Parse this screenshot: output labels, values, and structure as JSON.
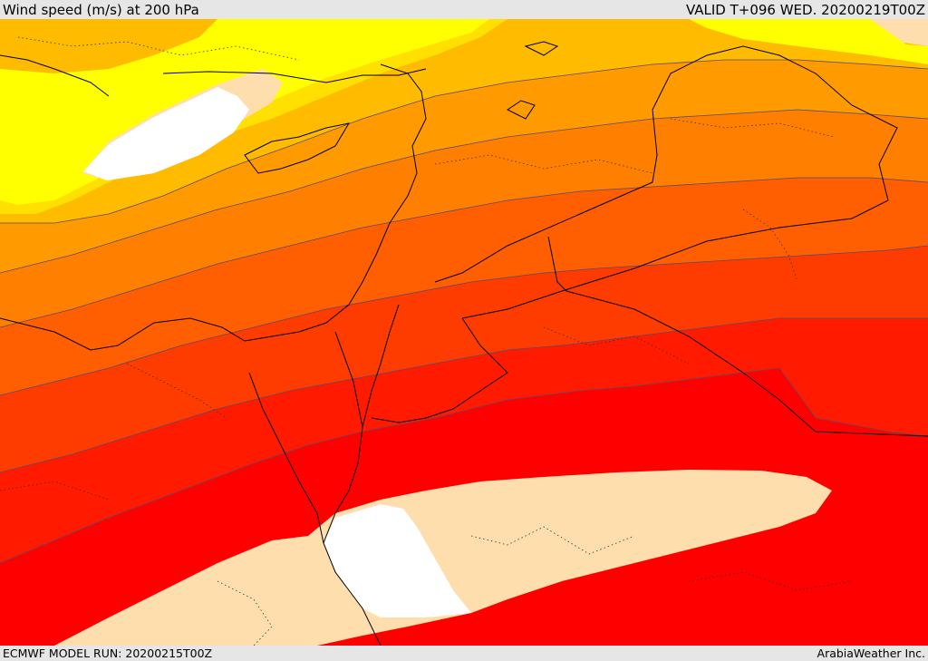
{
  "header": {
    "title": "Wind speed (m/s) at 200 hPa",
    "valid": "VALID T+096 WED. 20200219T00Z"
  },
  "footer": {
    "model_run": "ECMWF MODEL RUN: 20200215T00Z",
    "credit": "ArabiaWeather Inc."
  },
  "map": {
    "variable": "Wind speed",
    "units": "m/s",
    "level": "200 hPa",
    "bands": [
      {
        "name": "band-lowest",
        "color": "#ffffff"
      },
      {
        "name": "band-2",
        "color": "#ffdead"
      },
      {
        "name": "band-3",
        "color": "#ffff00"
      },
      {
        "name": "band-4",
        "color": "#ffe000"
      },
      {
        "name": "band-5",
        "color": "#ffbb00"
      },
      {
        "name": "band-6",
        "color": "#ff9a00"
      },
      {
        "name": "band-7",
        "color": "#ff7f00"
      },
      {
        "name": "band-8",
        "color": "#ff5f00"
      },
      {
        "name": "band-9",
        "color": "#ff3c00"
      },
      {
        "name": "band-10",
        "color": "#ff1a00"
      },
      {
        "name": "band-highest",
        "color": "#ff0000"
      }
    ]
  }
}
